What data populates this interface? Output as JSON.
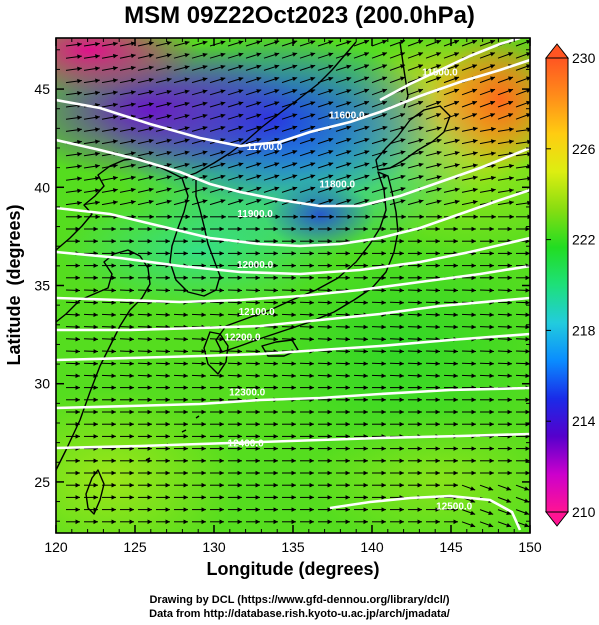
{
  "title": "MSM 09Z22Oct2023 (200.0hPa)",
  "axes": {
    "xlabel": "Longitude (degrees)",
    "ylabel": "Latitude  (degrees)",
    "xticks": [
      "120",
      "125",
      "130",
      "135",
      "140",
      "145",
      "150"
    ],
    "yticks": [
      "25",
      "30",
      "35",
      "40",
      "45"
    ],
    "xlim": [
      120,
      150
    ],
    "ylim": [
      22.4,
      47.6
    ]
  },
  "colorbar": {
    "labels": [
      "230",
      "226",
      "222",
      "218",
      "214",
      "210"
    ],
    "range": [
      210,
      230
    ],
    "colors": [
      "#ff1493",
      "#cc00cc",
      "#5500cc",
      "#1a2be8",
      "#0a8cff",
      "#22ccdd",
      "#1ee07a",
      "#22dd22",
      "#88dd11",
      "#ddee11",
      "#ffcc11",
      "#ff8c1a",
      "#ff5522"
    ]
  },
  "contour_labels": [
    {
      "text": "11500.0",
      "lon": 144.3,
      "lat": 45.7
    },
    {
      "text": "11600.0",
      "lon": 138.4,
      "lat": 43.5
    },
    {
      "text": "11700.0",
      "lon": 133.2,
      "lat": 41.9
    },
    {
      "text": "11800.0",
      "lon": 137.8,
      "lat": 40.0
    },
    {
      "text": "11900.0",
      "lon": 132.6,
      "lat": 38.5
    },
    {
      "text": "12000.0",
      "lon": 132.6,
      "lat": 35.9
    },
    {
      "text": "12100.0",
      "lon": 132.7,
      "lat": 33.5
    },
    {
      "text": "12200.0",
      "lon": 131.8,
      "lat": 32.2
    },
    {
      "text": "12300.0",
      "lon": 132.1,
      "lat": 29.4
    },
    {
      "text": "12400.0",
      "lon": 132.0,
      "lat": 26.8
    },
    {
      "text": "12500.0",
      "lon": 145.2,
      "lat": 23.6
    }
  ],
  "credits": {
    "line1": "Drawing by DCL (https://www.gfd-dennou.org/library/dcl/)",
    "line2": "Data from http://database.rish.kyoto-u.ac.jp/arch/jmadata/"
  },
  "colors": {
    "contour": "#ffffff",
    "vector": "#000000",
    "coastline": "#000000"
  }
}
